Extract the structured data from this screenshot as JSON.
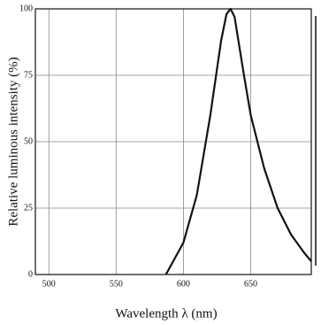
{
  "chart_data": {
    "type": "line",
    "x_label": "Wavelength λ (nm)",
    "y_label": "Relative luminous intensity (%)",
    "x": [
      587,
      600,
      610,
      620,
      628,
      632,
      635,
      638,
      645,
      650,
      660,
      670,
      680,
      690,
      695
    ],
    "series": [
      {
        "color": "#111111",
        "values": [
          0,
          12,
          30,
          60,
          88,
          98,
          100,
          97,
          75,
          60,
          40,
          25,
          15,
          8,
          5
        ]
      }
    ],
    "xlim": [
      490,
      695
    ],
    "xticks": [
      500,
      550,
      600,
      650
    ],
    "ylim": [
      0,
      100
    ],
    "yticks": [
      0,
      25,
      50,
      75,
      100
    ],
    "grid": true
  }
}
